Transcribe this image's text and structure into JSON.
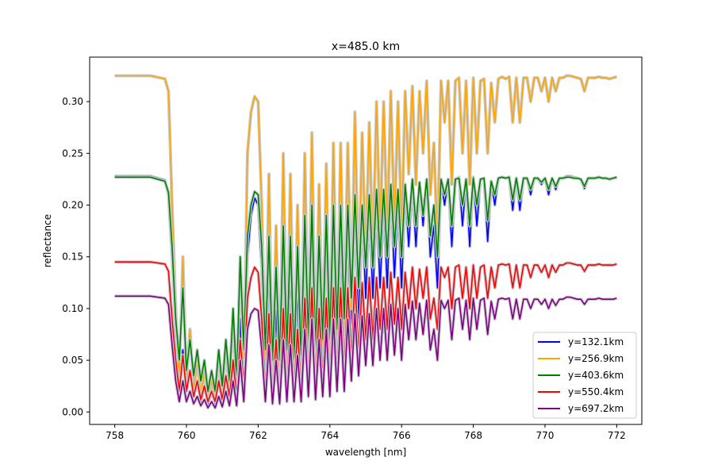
{
  "chart_data": {
    "type": "line",
    "title": "x=485.0 km",
    "xlabel": "wavelength [nm]",
    "ylabel": "reflectance",
    "xlim": [
      757.3,
      772.7
    ],
    "ylim": [
      -0.012,
      0.343
    ],
    "xticks": [
      758,
      760,
      762,
      764,
      766,
      768,
      770,
      772
    ],
    "xtick_labels": [
      "758",
      "760",
      "762",
      "764",
      "766",
      "768",
      "770",
      "772"
    ],
    "yticks": [
      0.0,
      0.05,
      0.1,
      0.15,
      0.2,
      0.25,
      0.3
    ],
    "ytick_labels": [
      "0.00",
      "0.05",
      "0.10",
      "0.15",
      "0.20",
      "0.25",
      "0.30"
    ],
    "grid": false,
    "legend_position": "lower-right",
    "uncertainty_band_color": "#c8ccd0",
    "x": [
      758.0,
      759.0,
      759.4,
      759.5,
      759.6,
      759.7,
      759.8,
      759.9,
      760.0,
      760.1,
      760.2,
      760.3,
      760.4,
      760.5,
      760.6,
      760.7,
      760.8,
      760.9,
      761.0,
      761.1,
      761.2,
      761.3,
      761.4,
      761.5,
      761.6,
      761.7,
      761.8,
      761.9,
      762.0,
      762.1,
      762.2,
      762.3,
      762.4,
      762.5,
      762.6,
      762.7,
      762.8,
      762.9,
      763.0,
      763.1,
      763.2,
      763.3,
      763.4,
      763.5,
      763.6,
      763.7,
      763.8,
      763.9,
      764.0,
      764.1,
      764.2,
      764.3,
      764.4,
      764.5,
      764.6,
      764.7,
      764.8,
      764.9,
      765.0,
      765.1,
      765.2,
      765.3,
      765.4,
      765.5,
      765.6,
      765.7,
      765.8,
      765.9,
      766.0,
      766.1,
      766.2,
      766.3,
      766.4,
      766.5,
      766.6,
      766.7,
      766.8,
      766.9,
      767.0,
      767.1,
      767.2,
      767.3,
      767.4,
      767.5,
      767.6,
      767.7,
      767.8,
      767.9,
      768.0,
      768.1,
      768.2,
      768.3,
      768.4,
      768.5,
      768.6,
      768.7,
      768.8,
      768.9,
      769.0,
      769.1,
      769.2,
      769.3,
      769.4,
      769.5,
      769.6,
      769.7,
      769.8,
      769.9,
      770.0,
      770.1,
      770.2,
      770.3,
      770.4,
      770.5,
      770.6,
      770.7,
      770.8,
      770.9,
      771.0,
      771.1,
      771.2,
      771.3,
      771.4,
      771.5,
      771.6,
      771.7,
      771.8,
      771.9,
      772.0
    ],
    "series": [
      {
        "name": "y=132.1km",
        "color": "#0000ff",
        "values": [
          0.228,
          0.228,
          0.224,
          0.21,
          0.15,
          0.08,
          0.03,
          0.06,
          0.02,
          0.04,
          0.015,
          0.03,
          0.01,
          0.025,
          0.008,
          0.02,
          0.008,
          0.03,
          0.01,
          0.035,
          0.01,
          0.05,
          0.012,
          0.09,
          0.02,
          0.15,
          0.19,
          0.207,
          0.2,
          0.14,
          0.03,
          0.14,
          0.02,
          0.1,
          0.02,
          0.16,
          0.03,
          0.14,
          0.02,
          0.12,
          0.02,
          0.17,
          0.04,
          0.2,
          0.03,
          0.15,
          0.04,
          0.18,
          0.04,
          0.19,
          0.05,
          0.175,
          0.05,
          0.18,
          0.07,
          0.2,
          0.08,
          0.195,
          0.11,
          0.2,
          0.11,
          0.205,
          0.12,
          0.205,
          0.12,
          0.215,
          0.13,
          0.205,
          0.12,
          0.215,
          0.16,
          0.22,
          0.16,
          0.22,
          0.18,
          0.225,
          0.15,
          0.18,
          0.12,
          0.225,
          0.2,
          0.225,
          0.16,
          0.225,
          0.227,
          0.18,
          0.225,
          0.16,
          0.227,
          0.18,
          0.225,
          0.226,
          0.165,
          0.223,
          0.2,
          0.226,
          0.227,
          0.226,
          0.227,
          0.195,
          0.226,
          0.195,
          0.226,
          0.226,
          0.21,
          0.226,
          0.226,
          0.22,
          0.226,
          0.21,
          0.226,
          0.215,
          0.226,
          0.226,
          0.228,
          0.228,
          0.227,
          0.226,
          0.225,
          0.216,
          0.226,
          0.226,
          0.226,
          0.227,
          0.226,
          0.226,
          0.225,
          0.226,
          0.227
        ]
      },
      {
        "name": "y=256.9km",
        "color": "#ffa500",
        "values": [
          0.325,
          0.325,
          0.322,
          0.31,
          0.2,
          0.1,
          0.03,
          0.15,
          0.03,
          0.08,
          0.02,
          0.05,
          0.015,
          0.04,
          0.01,
          0.03,
          0.012,
          0.05,
          0.015,
          0.06,
          0.02,
          0.09,
          0.02,
          0.15,
          0.04,
          0.25,
          0.29,
          0.305,
          0.3,
          0.2,
          0.05,
          0.23,
          0.03,
          0.18,
          0.03,
          0.25,
          0.05,
          0.23,
          0.04,
          0.2,
          0.04,
          0.25,
          0.06,
          0.27,
          0.05,
          0.22,
          0.06,
          0.24,
          0.06,
          0.26,
          0.07,
          0.26,
          0.08,
          0.26,
          0.1,
          0.29,
          0.12,
          0.27,
          0.15,
          0.28,
          0.15,
          0.3,
          0.17,
          0.3,
          0.17,
          0.31,
          0.18,
          0.3,
          0.17,
          0.31,
          0.23,
          0.315,
          0.22,
          0.31,
          0.25,
          0.32,
          0.21,
          0.26,
          0.16,
          0.32,
          0.28,
          0.32,
          0.22,
          0.32,
          0.323,
          0.25,
          0.32,
          0.22,
          0.323,
          0.25,
          0.32,
          0.322,
          0.25,
          0.318,
          0.28,
          0.322,
          0.324,
          0.322,
          0.324,
          0.28,
          0.323,
          0.28,
          0.323,
          0.323,
          0.3,
          0.323,
          0.323,
          0.31,
          0.323,
          0.3,
          0.323,
          0.31,
          0.323,
          0.323,
          0.325,
          0.325,
          0.324,
          0.323,
          0.322,
          0.31,
          0.323,
          0.323,
          0.323,
          0.324,
          0.323,
          0.323,
          0.322,
          0.323,
          0.324
        ]
      },
      {
        "name": "y=403.6km",
        "color": "#008000",
        "values": [
          0.227,
          0.227,
          0.223,
          0.212,
          0.16,
          0.09,
          0.05,
          0.12,
          0.04,
          0.07,
          0.035,
          0.06,
          0.03,
          0.05,
          0.02,
          0.04,
          0.02,
          0.06,
          0.025,
          0.07,
          0.03,
          0.1,
          0.03,
          0.15,
          0.06,
          0.17,
          0.2,
          0.213,
          0.21,
          0.16,
          0.06,
          0.17,
          0.05,
          0.14,
          0.05,
          0.18,
          0.06,
          0.17,
          0.05,
          0.16,
          0.05,
          0.19,
          0.07,
          0.2,
          0.06,
          0.17,
          0.07,
          0.19,
          0.07,
          0.2,
          0.08,
          0.2,
          0.09,
          0.2,
          0.11,
          0.21,
          0.12,
          0.2,
          0.14,
          0.21,
          0.14,
          0.215,
          0.15,
          0.215,
          0.15,
          0.22,
          0.16,
          0.215,
          0.15,
          0.22,
          0.18,
          0.225,
          0.18,
          0.222,
          0.19,
          0.225,
          0.17,
          0.2,
          0.15,
          0.225,
          0.21,
          0.225,
          0.18,
          0.225,
          0.226,
          0.2,
          0.225,
          0.18,
          0.226,
          0.2,
          0.225,
          0.226,
          0.185,
          0.223,
          0.21,
          0.226,
          0.227,
          0.226,
          0.227,
          0.205,
          0.226,
          0.205,
          0.226,
          0.226,
          0.215,
          0.226,
          0.226,
          0.222,
          0.226,
          0.215,
          0.226,
          0.218,
          0.226,
          0.226,
          0.227,
          0.227,
          0.226,
          0.226,
          0.225,
          0.218,
          0.226,
          0.226,
          0.226,
          0.227,
          0.226,
          0.226,
          0.225,
          0.226,
          0.227
        ]
      },
      {
        "name": "y=550.4km",
        "color": "#ff0000",
        "values": [
          0.145,
          0.145,
          0.143,
          0.136,
          0.09,
          0.05,
          0.02,
          0.055,
          0.02,
          0.04,
          0.015,
          0.03,
          0.012,
          0.025,
          0.01,
          0.02,
          0.01,
          0.03,
          0.012,
          0.035,
          0.015,
          0.05,
          0.015,
          0.07,
          0.025,
          0.11,
          0.13,
          0.14,
          0.135,
          0.09,
          0.02,
          0.095,
          0.015,
          0.07,
          0.015,
          0.1,
          0.02,
          0.095,
          0.02,
          0.08,
          0.02,
          0.11,
          0.03,
          0.12,
          0.025,
          0.1,
          0.03,
          0.11,
          0.03,
          0.12,
          0.035,
          0.12,
          0.04,
          0.12,
          0.05,
          0.13,
          0.055,
          0.125,
          0.07,
          0.13,
          0.07,
          0.13,
          0.08,
          0.13,
          0.08,
          0.135,
          0.085,
          0.13,
          0.08,
          0.135,
          0.1,
          0.14,
          0.1,
          0.138,
          0.11,
          0.14,
          0.09,
          0.11,
          0.08,
          0.14,
          0.13,
          0.14,
          0.1,
          0.14,
          0.142,
          0.11,
          0.14,
          0.1,
          0.142,
          0.11,
          0.14,
          0.142,
          0.11,
          0.14,
          0.12,
          0.142,
          0.143,
          0.142,
          0.143,
          0.12,
          0.142,
          0.12,
          0.142,
          0.142,
          0.13,
          0.142,
          0.142,
          0.135,
          0.142,
          0.13,
          0.142,
          0.135,
          0.142,
          0.142,
          0.144,
          0.144,
          0.143,
          0.142,
          0.142,
          0.136,
          0.142,
          0.142,
          0.142,
          0.143,
          0.142,
          0.142,
          0.142,
          0.142,
          0.143
        ]
      },
      {
        "name": "y=697.2km",
        "color": "#800080",
        "values": [
          0.112,
          0.112,
          0.11,
          0.104,
          0.065,
          0.03,
          0.01,
          0.03,
          0.01,
          0.02,
          0.008,
          0.015,
          0.006,
          0.012,
          0.004,
          0.01,
          0.004,
          0.015,
          0.005,
          0.02,
          0.006,
          0.03,
          0.006,
          0.05,
          0.01,
          0.08,
          0.095,
          0.1,
          0.098,
          0.06,
          0.01,
          0.065,
          0.008,
          0.05,
          0.008,
          0.07,
          0.01,
          0.065,
          0.01,
          0.055,
          0.01,
          0.08,
          0.015,
          0.09,
          0.012,
          0.07,
          0.015,
          0.08,
          0.015,
          0.09,
          0.02,
          0.09,
          0.02,
          0.09,
          0.03,
          0.095,
          0.035,
          0.093,
          0.045,
          0.095,
          0.045,
          0.1,
          0.05,
          0.1,
          0.05,
          0.104,
          0.055,
          0.1,
          0.05,
          0.104,
          0.07,
          0.107,
          0.07,
          0.105,
          0.075,
          0.108,
          0.06,
          0.08,
          0.05,
          0.108,
          0.1,
          0.108,
          0.07,
          0.108,
          0.11,
          0.08,
          0.108,
          0.07,
          0.11,
          0.08,
          0.108,
          0.11,
          0.075,
          0.107,
          0.09,
          0.109,
          0.11,
          0.109,
          0.11,
          0.09,
          0.109,
          0.09,
          0.109,
          0.109,
          0.1,
          0.109,
          0.109,
          0.104,
          0.109,
          0.1,
          0.109,
          0.103,
          0.109,
          0.109,
          0.111,
          0.111,
          0.11,
          0.109,
          0.109,
          0.104,
          0.109,
          0.109,
          0.109,
          0.11,
          0.109,
          0.109,
          0.109,
          0.109,
          0.11
        ]
      }
    ]
  }
}
